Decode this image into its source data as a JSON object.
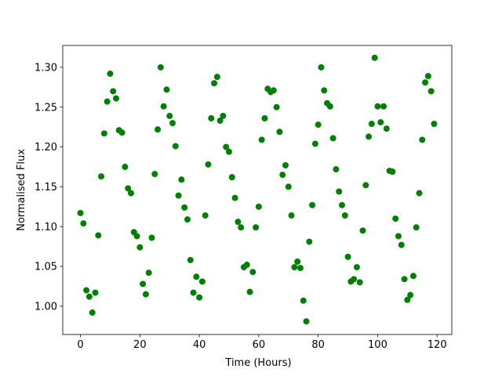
{
  "chart_data": {
    "type": "scatter",
    "x_label": "Time (Hours)",
    "y_label": "Normalised Flux",
    "series": [
      {
        "color": "#008000",
        "x": [
          0,
          1,
          2,
          3,
          4,
          5,
          6,
          7,
          8,
          9,
          10,
          11,
          12,
          13,
          14,
          15,
          16,
          17,
          18,
          19,
          20,
          21,
          22,
          23,
          24,
          25,
          26,
          27,
          28,
          29,
          30,
          31,
          32,
          33,
          34,
          35,
          36,
          37,
          38,
          39,
          40,
          41,
          42,
          43,
          44,
          45,
          46,
          47,
          48,
          49,
          50,
          51,
          52,
          53,
          54,
          55,
          56,
          57,
          58,
          59,
          60,
          61,
          62,
          63,
          64,
          65,
          66,
          67,
          68,
          69,
          70,
          71,
          72,
          73,
          74,
          75,
          76,
          77,
          78,
          79,
          80,
          81,
          82,
          83,
          84,
          85,
          86,
          87,
          88,
          89,
          90,
          91,
          92,
          93,
          94,
          95,
          96,
          97,
          98,
          99,
          100,
          101,
          102,
          103,
          104,
          105,
          106,
          107,
          108,
          109,
          110,
          111,
          112,
          113,
          114,
          115,
          116,
          117,
          118,
          119
        ],
        "values": [
          1.117,
          1.104,
          1.02,
          1.012,
          0.992,
          1.017,
          1.089,
          1.163,
          1.217,
          1.257,
          1.292,
          1.27,
          1.261,
          1.221,
          1.218,
          1.175,
          1.148,
          1.142,
          1.093,
          1.088,
          1.074,
          1.028,
          1.015,
          1.042,
          1.086,
          1.166,
          1.222,
          1.3,
          1.251,
          1.272,
          1.239,
          1.23,
          1.201,
          1.139,
          1.159,
          1.124,
          1.109,
          1.058,
          1.017,
          1.037,
          1.011,
          1.031,
          1.114,
          1.178,
          1.236,
          1.28,
          1.288,
          1.233,
          1.239,
          1.2,
          1.194,
          1.162,
          1.136,
          1.106,
          1.099,
          1.049,
          1.052,
          1.018,
          1.043,
          1.099,
          1.125,
          1.209,
          1.236,
          1.273,
          1.269,
          1.271,
          1.25,
          1.219,
          1.165,
          1.177,
          1.15,
          1.114,
          1.049,
          1.056,
          1.048,
          1.007,
          0.981,
          1.081,
          1.127,
          1.204,
          1.228,
          1.3,
          1.271,
          1.255,
          1.251,
          1.211,
          1.172,
          1.144,
          1.127,
          1.114,
          1.062,
          1.031,
          1.034,
          1.049,
          1.03,
          1.095,
          1.152,
          1.213,
          1.229,
          1.312,
          1.251,
          1.231,
          1.251,
          1.223,
          1.17,
          1.169,
          1.11,
          1.088,
          1.077,
          1.034,
          1.008,
          1.014,
          1.038,
          1.099,
          1.142,
          1.209,
          1.281,
          1.289,
          1.27,
          1.229
        ]
      }
    ],
    "xlim": [
      -5.95,
      124.95
    ],
    "xticks": [
      0,
      20,
      40,
      60,
      80,
      100,
      120
    ],
    "ylim": [
      0.9645,
      1.3275
    ],
    "yticks": [
      {
        "value": 1.0,
        "label": "1.00"
      },
      1.05,
      {
        "value": 1.1,
        "label": "1.10"
      },
      1.15,
      {
        "value": 1.2,
        "label": "1.20"
      },
      1.25,
      {
        "value": 1.3,
        "label": "1.30"
      }
    ]
  }
}
